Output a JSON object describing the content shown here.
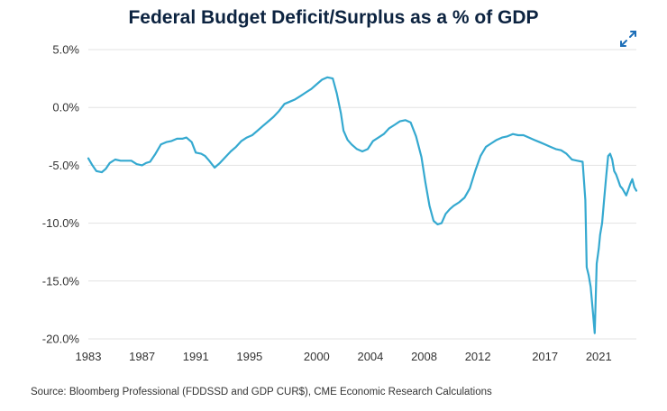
{
  "colors": {
    "line": "#35a9d0",
    "grid": "#e3e3e3",
    "title": "#0c2340",
    "text": "#333333"
  },
  "icons": {
    "expand": "expand-arrows-icon"
  },
  "source": "Source: Bloomberg Professional (FDDSSD and GDP CUR$), CME Economic Research Calculations",
  "chart_data": {
    "type": "line",
    "title": "Federal Budget Deficit/Surplus as a % of GDP",
    "xlabel": "",
    "ylabel": "",
    "xlim": [
      1983,
      2023.8
    ],
    "ylim": [
      -20,
      5
    ],
    "y_ticks": [
      5,
      0,
      -5,
      -10,
      -15,
      -20
    ],
    "y_tick_labels": [
      "5.0%",
      "0.0%",
      "-5.0%",
      "-10.0%",
      "-15.0%",
      "-20.0%"
    ],
    "x_ticks": [
      1983,
      1987,
      1991,
      1995,
      2000,
      2004,
      2008,
      2012,
      2017,
      2021
    ],
    "x_tick_labels": [
      "1983",
      "1987",
      "1991",
      "1995",
      "2000",
      "2004",
      "2008",
      "2012",
      "2017",
      "2021"
    ],
    "grid": true,
    "series": [
      {
        "name": "Deficit/Surplus % of GDP",
        "x": [
          1983.0,
          1983.3,
          1983.6,
          1984.0,
          1984.3,
          1984.6,
          1985.0,
          1985.4,
          1985.8,
          1986.2,
          1986.6,
          1987.0,
          1987.3,
          1987.6,
          1988.0,
          1988.4,
          1988.8,
          1989.2,
          1989.6,
          1990.0,
          1990.3,
          1990.7,
          1991.0,
          1991.4,
          1991.7,
          1992.0,
          1992.4,
          1992.8,
          1993.2,
          1993.6,
          1994.0,
          1994.4,
          1994.8,
          1995.2,
          1995.6,
          1996.0,
          1996.4,
          1996.8,
          1997.2,
          1997.6,
          1998.0,
          1998.4,
          1998.8,
          1999.2,
          1999.6,
          2000.0,
          2000.4,
          2000.8,
          2001.2,
          2001.5,
          2001.8,
          2002.0,
          2002.3,
          2002.6,
          2003.0,
          2003.4,
          2003.8,
          2004.2,
          2004.6,
          2005.0,
          2005.4,
          2005.8,
          2006.2,
          2006.6,
          2007.0,
          2007.4,
          2007.8,
          2008.1,
          2008.4,
          2008.7,
          2009.0,
          2009.3,
          2009.6,
          2009.9,
          2010.2,
          2010.6,
          2011.0,
          2011.4,
          2011.8,
          2012.2,
          2012.6,
          2013.0,
          2013.4,
          2013.8,
          2014.2,
          2014.6,
          2015.0,
          2015.4,
          2015.8,
          2016.2,
          2016.6,
          2017.0,
          2017.4,
          2017.8,
          2018.2,
          2018.6,
          2019.0,
          2019.4,
          2019.8,
          2020.0,
          2020.1,
          2020.25,
          2020.4,
          2020.55,
          2020.7,
          2020.85,
          2021.0,
          2021.1,
          2021.25,
          2021.4,
          2021.55,
          2021.7,
          2021.85,
          2022.0,
          2022.15,
          2022.3,
          2022.45,
          2022.6,
          2022.75,
          2022.9,
          2023.05,
          2023.2,
          2023.35,
          2023.5,
          2023.65,
          2023.8
        ],
        "values": [
          -4.4,
          -5.0,
          -5.5,
          -5.6,
          -5.3,
          -4.8,
          -4.5,
          -4.6,
          -4.6,
          -4.6,
          -4.9,
          -5.0,
          -4.8,
          -4.7,
          -4.0,
          -3.2,
          -3.0,
          -2.9,
          -2.7,
          -2.7,
          -2.6,
          -3.0,
          -3.9,
          -4.0,
          -4.2,
          -4.6,
          -5.2,
          -4.8,
          -4.3,
          -3.8,
          -3.4,
          -2.9,
          -2.6,
          -2.4,
          -2.0,
          -1.6,
          -1.2,
          -0.8,
          -0.3,
          0.3,
          0.5,
          0.7,
          1.0,
          1.3,
          1.6,
          2.0,
          2.4,
          2.6,
          2.5,
          1.2,
          -0.5,
          -2.0,
          -2.8,
          -3.2,
          -3.6,
          -3.8,
          -3.6,
          -2.9,
          -2.6,
          -2.3,
          -1.8,
          -1.5,
          -1.2,
          -1.1,
          -1.3,
          -2.5,
          -4.3,
          -6.5,
          -8.5,
          -9.8,
          -10.1,
          -10.0,
          -9.2,
          -8.8,
          -8.5,
          -8.2,
          -7.8,
          -7.0,
          -5.5,
          -4.2,
          -3.4,
          -3.1,
          -2.8,
          -2.6,
          -2.5,
          -2.3,
          -2.4,
          -2.4,
          -2.6,
          -2.8,
          -3.0,
          -3.2,
          -3.4,
          -3.6,
          -3.7,
          -4.0,
          -4.5,
          -4.6,
          -4.7,
          -8.0,
          -13.8,
          -14.5,
          -15.5,
          -17.5,
          -19.5,
          -13.5,
          -12.2,
          -11.0,
          -10.0,
          -8.0,
          -6.0,
          -4.2,
          -4.0,
          -4.5,
          -5.5,
          -5.8,
          -6.3,
          -6.8,
          -7.0,
          -7.3,
          -7.6,
          -7.1,
          -6.6,
          -6.2,
          -6.9,
          -7.2
        ]
      }
    ]
  }
}
